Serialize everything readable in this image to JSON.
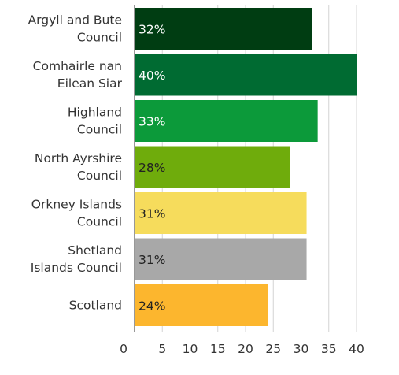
{
  "chart_data": {
    "type": "bar",
    "orientation": "horizontal",
    "title": "",
    "xlabel": "",
    "ylabel": "",
    "categories": [
      [
        "Argyll and Bute",
        "Council"
      ],
      [
        "Comhairle nan",
        "Eilean Siar"
      ],
      [
        "Highland",
        "Council"
      ],
      [
        "North Ayrshire",
        "Council"
      ],
      [
        "Orkney Islands",
        "Council"
      ],
      [
        "Shetland",
        "Islands Council"
      ],
      [
        "Scotland"
      ]
    ],
    "values": [
      32,
      40,
      33,
      28,
      31,
      31,
      24
    ],
    "data_labels": [
      "32%",
      "40%",
      "33%",
      "28%",
      "31%",
      "31%",
      "24%"
    ],
    "colors": [
      "#003d12",
      "#006b32",
      "#0c9a3a",
      "#6fac0c",
      "#f6dc5c",
      "#a8a8a8",
      "#fcb62e"
    ],
    "label_colors": [
      "#ffffff",
      "#ffffff",
      "#ffffff",
      "#222222",
      "#222222",
      "#222222",
      "#222222"
    ],
    "xlim": [
      0,
      40
    ],
    "x_ticks": [
      0,
      5,
      10,
      15,
      20,
      25,
      30,
      35,
      40
    ],
    "grid": true
  }
}
